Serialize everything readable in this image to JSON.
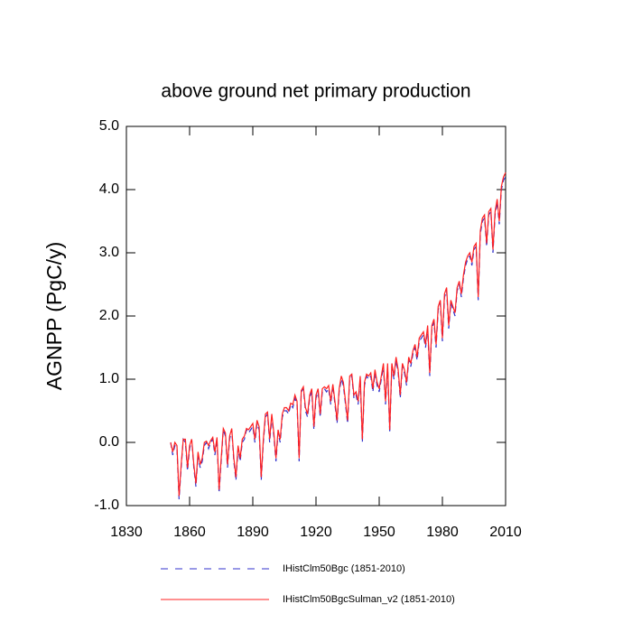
{
  "chart_data": {
    "type": "line",
    "title": "above ground net primary production",
    "y_label": "AGNPP  (PgC/y)",
    "x": [
      1851,
      1852,
      1853,
      1854,
      1855,
      1856,
      1857,
      1858,
      1859,
      1860,
      1861,
      1862,
      1863,
      1864,
      1865,
      1866,
      1867,
      1868,
      1869,
      1870,
      1871,
      1872,
      1873,
      1874,
      1875,
      1876,
      1877,
      1878,
      1879,
      1880,
      1881,
      1882,
      1883,
      1884,
      1885,
      1886,
      1887,
      1888,
      1889,
      1890,
      1891,
      1892,
      1893,
      1894,
      1895,
      1896,
      1897,
      1898,
      1899,
      1900,
      1901,
      1902,
      1903,
      1904,
      1905,
      1906,
      1907,
      1908,
      1909,
      1910,
      1911,
      1912,
      1913,
      1914,
      1915,
      1916,
      1917,
      1918,
      1919,
      1920,
      1921,
      1922,
      1923,
      1924,
      1925,
      1926,
      1927,
      1928,
      1929,
      1930,
      1931,
      1932,
      1933,
      1934,
      1935,
      1936,
      1937,
      1938,
      1939,
      1940,
      1941,
      1942,
      1943,
      1944,
      1945,
      1946,
      1947,
      1948,
      1949,
      1950,
      1951,
      1952,
      1953,
      1954,
      1955,
      1956,
      1957,
      1958,
      1959,
      1960,
      1961,
      1962,
      1963,
      1964,
      1965,
      1966,
      1967,
      1968,
      1969,
      1970,
      1971,
      1972,
      1973,
      1974,
      1975,
      1976,
      1977,
      1978,
      1979,
      1980,
      1981,
      1982,
      1983,
      1984,
      1985,
      1986,
      1987,
      1988,
      1989,
      1990,
      1991,
      1992,
      1993,
      1994,
      1995,
      1996,
      1997,
      1998,
      1999,
      2000,
      2001,
      2002,
      2003,
      2004,
      2005,
      2006,
      2007,
      2008,
      2009,
      2010
    ],
    "series": [
      {
        "name": "IHistClm50Bgc (1851-2010)",
        "color": "#3333cc",
        "dashed": true,
        "values": [
          0.0,
          -0.2,
          -0.05,
          -0.1,
          -0.9,
          -0.4,
          0.05,
          0.0,
          -0.45,
          -0.1,
          0.05,
          -0.4,
          -0.7,
          -0.2,
          -0.4,
          -0.3,
          -0.05,
          0.0,
          -0.1,
          0.0,
          0.05,
          -0.2,
          0.05,
          -0.8,
          -0.3,
          0.2,
          0.1,
          -0.4,
          0.05,
          0.2,
          -0.3,
          -0.6,
          -0.1,
          -0.3,
          0.0,
          0.05,
          0.2,
          0.15,
          0.2,
          0.25,
          0.0,
          0.3,
          0.2,
          -0.6,
          0.0,
          0.4,
          0.45,
          0.0,
          0.4,
          0.1,
          -0.3,
          0.15,
          0.0,
          0.4,
          0.5,
          0.5,
          0.45,
          0.6,
          0.55,
          0.7,
          0.6,
          -0.3,
          0.8,
          0.85,
          0.5,
          0.4,
          0.7,
          0.8,
          0.2,
          0.7,
          0.8,
          0.4,
          0.8,
          0.85,
          0.8,
          0.85,
          0.6,
          0.9,
          0.6,
          0.3,
          0.8,
          1.0,
          0.9,
          0.6,
          0.3,
          1.0,
          1.05,
          0.7,
          0.75,
          0.6,
          1.0,
          0.0,
          0.9,
          1.05,
          1.0,
          1.05,
          0.8,
          1.1,
          0.9,
          0.8,
          1.0,
          1.2,
          0.6,
          1.2,
          0.15,
          1.2,
          1.0,
          1.3,
          1.1,
          0.7,
          1.2,
          1.1,
          0.9,
          1.3,
          1.2,
          1.4,
          1.5,
          1.3,
          1.6,
          1.65,
          1.7,
          1.5,
          1.8,
          1.05,
          1.8,
          1.9,
          1.5,
          2.1,
          2.2,
          1.6,
          2.3,
          2.4,
          1.8,
          2.2,
          2.1,
          2.0,
          2.4,
          2.5,
          2.3,
          2.6,
          2.8,
          2.9,
          2.95,
          2.8,
          3.05,
          3.1,
          2.25,
          3.3,
          3.5,
          3.55,
          3.1,
          3.6,
          3.65,
          3.0,
          3.6,
          3.8,
          3.45,
          4.0,
          4.15,
          4.2
        ]
      },
      {
        "name": "IHistClm50BgcSulman_v2 (1851-2010)",
        "color": "#ff2020",
        "dashed": false,
        "values": [
          0.0,
          -0.15,
          0.0,
          -0.05,
          -0.85,
          -0.35,
          0.05,
          0.05,
          -0.4,
          -0.05,
          0.05,
          -0.35,
          -0.65,
          -0.15,
          -0.35,
          -0.25,
          0.0,
          0.02,
          -0.05,
          0.03,
          0.08,
          -0.15,
          0.08,
          -0.75,
          -0.25,
          0.22,
          0.15,
          -0.35,
          0.1,
          0.22,
          -0.25,
          -0.55,
          -0.05,
          -0.25,
          0.05,
          0.1,
          0.22,
          0.2,
          0.25,
          0.3,
          0.05,
          0.35,
          0.25,
          -0.55,
          0.05,
          0.45,
          0.48,
          0.05,
          0.45,
          0.15,
          -0.25,
          0.2,
          0.05,
          0.45,
          0.55,
          0.55,
          0.5,
          0.62,
          0.6,
          0.75,
          0.65,
          -0.25,
          0.82,
          0.88,
          0.55,
          0.45,
          0.75,
          0.85,
          0.25,
          0.75,
          0.85,
          0.45,
          0.85,
          0.88,
          0.85,
          0.9,
          0.65,
          0.92,
          0.65,
          0.35,
          0.85,
          1.05,
          0.95,
          0.65,
          0.35,
          1.05,
          1.08,
          0.75,
          0.8,
          0.65,
          1.05,
          0.05,
          0.95,
          1.08,
          1.05,
          1.1,
          0.85,
          1.15,
          0.95,
          0.85,
          1.05,
          1.25,
          0.65,
          1.25,
          0.2,
          1.25,
          1.05,
          1.35,
          1.15,
          0.75,
          1.25,
          1.15,
          0.95,
          1.35,
          1.25,
          1.45,
          1.55,
          1.35,
          1.65,
          1.7,
          1.75,
          1.55,
          1.85,
          1.1,
          1.85,
          1.95,
          1.55,
          2.15,
          2.25,
          1.65,
          2.35,
          2.45,
          1.85,
          2.25,
          2.15,
          2.05,
          2.45,
          2.55,
          2.35,
          2.65,
          2.85,
          2.95,
          3.0,
          2.85,
          3.1,
          3.15,
          2.3,
          3.35,
          3.55,
          3.6,
          3.15,
          3.65,
          3.7,
          3.05,
          3.65,
          3.85,
          3.5,
          4.05,
          4.2,
          4.27
        ]
      }
    ],
    "xlim": [
      1830,
      2010
    ],
    "xticks": [
      1830,
      1860,
      1890,
      1920,
      1950,
      1980,
      2010
    ],
    "ylim": [
      -1,
      5
    ],
    "yticks": [
      {
        "value": -1,
        "label": "-1.0"
      },
      {
        "value": 0,
        "label": "0.0"
      },
      {
        "value": 1,
        "label": "1.0"
      },
      {
        "value": 2,
        "label": "2.0"
      },
      {
        "value": 3,
        "label": "3.0"
      },
      {
        "value": 4,
        "label": "4.0"
      },
      {
        "value": 5,
        "label": "5.0"
      }
    ],
    "grid": false
  }
}
